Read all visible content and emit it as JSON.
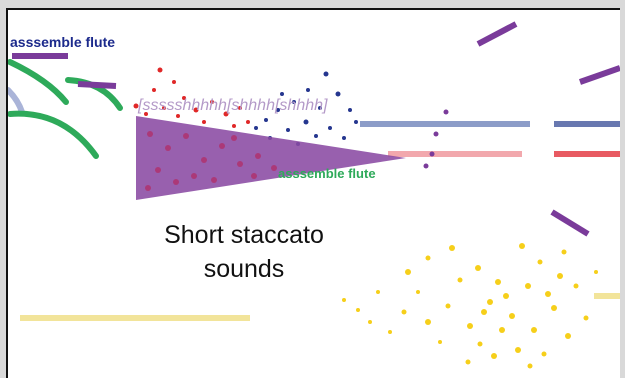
{
  "labels": {
    "instrument_top": "asssemble flute",
    "instrument_mid": "asssemble flute",
    "phoneme": "[ssssshhhhh[shhhh[shhhh]",
    "caption": "Short  staccato\nsounds"
  },
  "colors": {
    "background": "#d9d9d9",
    "panel": "#ffffff",
    "navy_label": "#1c2a8c",
    "green": "#2eaa5a",
    "purple": "#7a3b9a",
    "wedge": "#8a4aa3",
    "wedge_dots": "#b0306a",
    "red_dots": "#e02828",
    "blue_dots": "#25368f",
    "blue_line": "#8c9cc8",
    "pink_line": "#f2a8ad",
    "red_line": "#e85a62",
    "yellow": "#f6cf1a",
    "yellow_line": "#f2e49a",
    "lavender_text": "#b49ac8",
    "light_blue": "#aab4d8"
  }
}
